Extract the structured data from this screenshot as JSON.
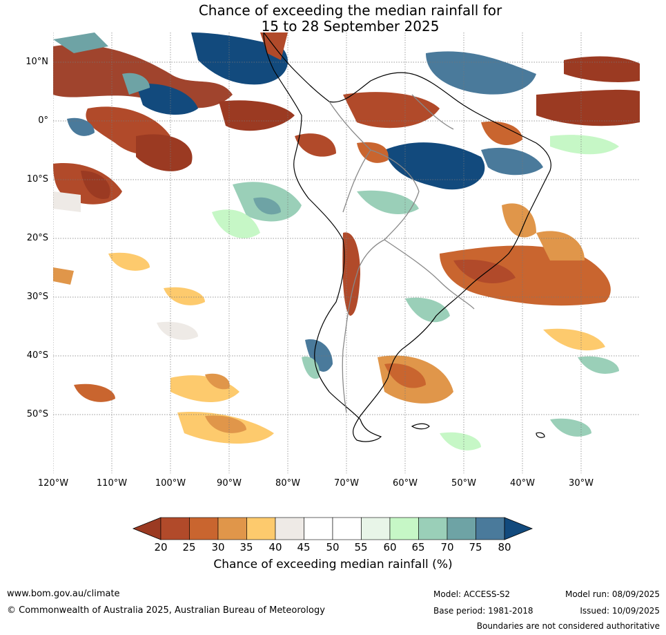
{
  "title": {
    "line1": "Chance of exceeding the median rainfall for",
    "line2": "15 to 28 September 2025"
  },
  "axes": {
    "lat_labels": [
      "10°N",
      "0°",
      "10°S",
      "20°S",
      "30°S",
      "40°S",
      "50°S"
    ],
    "lon_labels": [
      "120°W",
      "110°W",
      "100°W",
      "90°W",
      "80°W",
      "70°W",
      "60°W",
      "50°W",
      "40°W",
      "30°W"
    ]
  },
  "legend": {
    "title": "Chance of exceeding median rainfall (%)",
    "ticks": [
      "20",
      "25",
      "30",
      "35",
      "40",
      "45",
      "50",
      "55",
      "60",
      "65",
      "70",
      "75",
      "80"
    ],
    "colors": [
      "#9b3a22",
      "#b14a2a",
      "#c9652f",
      "#e0964a",
      "#fdca6d",
      "#eeeae6",
      "#ffffff",
      "#ffffff",
      "#e8f5e8",
      "#c6f7c6",
      "#9acfb8",
      "#6ea3a5",
      "#4a7a9b",
      "#124a7d"
    ]
  },
  "footer": {
    "website": "www.bom.gov.au/climate",
    "copyright": "© Commonwealth of Australia 2025, Australian Bureau of Meteorology",
    "model": "Model: ACCESS-S2",
    "model_run": "Model run: 08/09/2025",
    "base_period": "Base period: 1981-2018",
    "issued": "Issued: 10/09/2025",
    "disclaimer": "Boundaries are not considered authoritative"
  }
}
